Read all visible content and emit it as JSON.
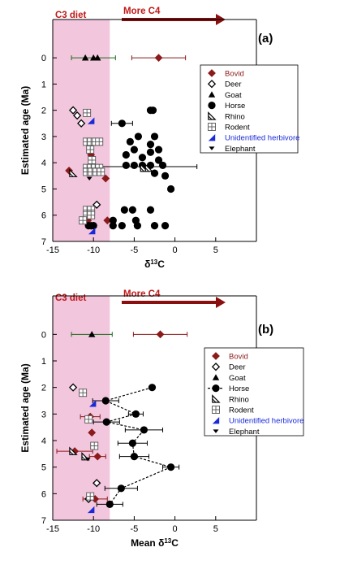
{
  "colors": {
    "c3_band": "#f2c6dd",
    "annotation": "#c01818",
    "arrow": "#8a1010",
    "bovid": "#8b1a1a",
    "unidentified": "#1a2ad8",
    "black": "#000000"
  },
  "chart_data": [
    {
      "type": "scatter",
      "panel_label": "(a)",
      "title": "",
      "xlabel": "δ13C",
      "ylabel": "Estimated age (Ma)",
      "xlim": [
        -15,
        10
      ],
      "ylim": [
        7,
        -0.5
      ],
      "xticks": [
        "-15",
        "-10",
        "-5",
        "0",
        "5"
      ],
      "yticks": [
        "0",
        "1",
        "2",
        "3",
        "4",
        "5",
        "6",
        "7"
      ],
      "c3_band_x": [
        -15,
        -8
      ],
      "annotations": {
        "c3": "C3 diet",
        "c4": "More C4"
      },
      "legend": {
        "position": "right",
        "entries": [
          {
            "label": "Bovid",
            "marker": "diamond-filled",
            "color": "#8b1a1a"
          },
          {
            "label": "Deer",
            "marker": "diamond-open",
            "color": "#000000"
          },
          {
            "label": "Goat",
            "marker": "triangle",
            "color": "#000000"
          },
          {
            "label": "Horse",
            "marker": "circle",
            "color": "#000000"
          },
          {
            "label": "Rhino",
            "marker": "half-triangle",
            "color": "#000000"
          },
          {
            "label": "Rodent",
            "marker": "crosshatch",
            "color": "#000000"
          },
          {
            "label": "Unidentified herbivore",
            "marker": "blue-triangle",
            "color": "#1a2ad8"
          },
          {
            "label": "Elephant",
            "marker": "elephant",
            "color": "#000000"
          }
        ]
      },
      "series": [
        {
          "name": "Bovid",
          "points": [
            [
              -2,
              0,
              3.3
            ],
            [
              -13,
              4.3,
              0
            ],
            [
              -10.3,
              3.7,
              0
            ],
            [
              -10.4,
              3.3,
              0
            ],
            [
              -8.5,
              4.6,
              0
            ],
            [
              -10.7,
              6.2,
              0
            ],
            [
              -8.3,
              6.2,
              0
            ]
          ]
        },
        {
          "name": "Deer",
          "points": [
            [
              -12.5,
              2.0,
              0
            ],
            [
              -12,
              2.2,
              0
            ],
            [
              -11.5,
              2.5,
              0
            ],
            [
              -9.6,
              5.6,
              0
            ],
            [
              -10.3,
              6.4,
              0
            ]
          ]
        },
        {
          "name": "Goat",
          "points": [
            [
              -11,
              0,
              0
            ],
            [
              -10,
              0,
              0
            ],
            [
              -9.5,
              0,
              0
            ]
          ]
        },
        {
          "name": "Horse",
          "points": [
            [
              -3,
              2.0,
              0
            ],
            [
              -2.7,
              2.0,
              0
            ],
            [
              -6.5,
              2.5,
              0
            ],
            [
              -4.5,
              3.0,
              0
            ],
            [
              -2.5,
              3.0,
              0
            ],
            [
              -5.5,
              3.2,
              0
            ],
            [
              -3,
              3.3,
              0
            ],
            [
              -5,
              3.5,
              0
            ],
            [
              -2,
              3.5,
              0
            ],
            [
              -3,
              3.6,
              0
            ],
            [
              -6,
              3.7,
              0
            ],
            [
              -4,
              3.8,
              0
            ],
            [
              -2,
              3.9,
              0
            ],
            [
              -6,
              4.1,
              0
            ],
            [
              -5,
              4.1,
              0
            ],
            [
              -4,
              4.1,
              0
            ],
            [
              -3,
              4.1,
              0
            ],
            [
              -1.5,
              4.1,
              0
            ],
            [
              -2.5,
              4.4,
              0
            ],
            [
              -1.2,
              4.5,
              0
            ],
            [
              -0.5,
              5.0,
              0
            ],
            [
              -6.2,
              5.8,
              0
            ],
            [
              -5.2,
              5.8,
              0
            ],
            [
              -3,
              5.8,
              0
            ],
            [
              -7.6,
              6.2,
              0
            ],
            [
              -4.8,
              6.2,
              0
            ],
            [
              -7.6,
              6.4,
              0
            ],
            [
              -6.5,
              6.4,
              0
            ],
            [
              -4.6,
              6.4,
              0
            ],
            [
              -10.6,
              6.4,
              0
            ],
            [
              -10,
              6.4,
              0
            ],
            [
              -2.5,
              6.4,
              0
            ],
            [
              -1.2,
              6.4,
              0
            ]
          ]
        },
        {
          "name": "Rhino",
          "points": [
            [
              -12.5,
              4.4,
              0
            ],
            [
              -3.8,
              4.2,
              0
            ],
            [
              -3.2,
              4.2,
              0
            ]
          ]
        },
        {
          "name": "Rodent",
          "points": [
            [
              -10.8,
              2.1,
              0
            ],
            [
              -10.8,
              3.2,
              0
            ],
            [
              -10.3,
              3.2,
              0
            ],
            [
              -9.7,
              3.2,
              0
            ],
            [
              -9.3,
              3.2,
              0
            ],
            [
              -10.4,
              3.5,
              0
            ],
            [
              -10.2,
              3.9,
              0
            ],
            [
              -10.8,
              4.2,
              0
            ],
            [
              -10.3,
              4.2,
              0
            ],
            [
              -9.8,
              4.2,
              0
            ],
            [
              -9.3,
              4.2,
              0
            ],
            [
              -10.8,
              4.35,
              0
            ],
            [
              -10.2,
              4.35,
              0
            ],
            [
              -9.6,
              4.35,
              0
            ],
            [
              -9.1,
              4.35,
              0
            ],
            [
              -10.8,
              5.8,
              0
            ],
            [
              -10.3,
              5.8,
              0
            ],
            [
              -10.8,
              6.0,
              0
            ],
            [
              -10.3,
              6.0,
              0
            ],
            [
              -11.3,
              6.2,
              0
            ]
          ]
        },
        {
          "name": "Unidentified herbivore",
          "points": [
            [
              -10.3,
              2.4,
              0
            ],
            [
              -10.2,
              6.6,
              0
            ]
          ]
        },
        {
          "name": "Elephant",
          "points": [
            [
              -10.5,
              4.6,
              0
            ]
          ]
        }
      ],
      "error_bars": [
        {
          "series": "Goat",
          "x": -10,
          "y": 0,
          "xerr": 2.7
        },
        {
          "series": "Horse",
          "x": -6.5,
          "y": 2.5,
          "xerr": 1.3
        },
        {
          "series": "Horse",
          "x": -3.8,
          "y": 4.15,
          "xerr": 6.5
        }
      ]
    },
    {
      "type": "scatter",
      "panel_label": "(b)",
      "title": "",
      "xlabel": "Mean δ13C",
      "ylabel": "Estimated age (Ma)",
      "xlim": [
        -15,
        10
      ],
      "ylim": [
        7,
        -0.5
      ],
      "xticks": [
        "-15",
        "-10",
        "-5",
        "0",
        "5"
      ],
      "yticks": [
        "0",
        "1",
        "2",
        "3",
        "4",
        "5",
        "6",
        "7"
      ],
      "c3_band_x": [
        -15,
        -8
      ],
      "annotations": {
        "c3": "C3 diet",
        "c4": "More C4"
      },
      "legend": {
        "position": "right",
        "entries": [
          {
            "label": "Bovid",
            "marker": "diamond-filled",
            "color": "#8b1a1a"
          },
          {
            "label": "Deer",
            "marker": "diamond-open",
            "color": "#000000"
          },
          {
            "label": "Goat",
            "marker": "triangle",
            "color": "#000000"
          },
          {
            "label": "Horse",
            "marker": "circle-line",
            "color": "#000000"
          },
          {
            "label": "Rhino",
            "marker": "half-triangle",
            "color": "#000000"
          },
          {
            "label": "Rodent",
            "marker": "crosshatch",
            "color": "#000000"
          },
          {
            "label": "Unidentified herbivore",
            "marker": "blue-triangle",
            "color": "#1a2ad8"
          },
          {
            "label": "Elephant",
            "marker": "elephant",
            "color": "#000000"
          }
        ]
      },
      "series": [
        {
          "name": "Bovid",
          "points": [
            [
              -1.8,
              0,
              3.3
            ],
            [
              -10.4,
              3.1,
              1.2
            ],
            [
              -10.2,
              3.7,
              0
            ],
            [
              -12.3,
              4.4,
              2.2
            ],
            [
              -9.5,
              4.6,
              1.0
            ],
            [
              -9.8,
              6.2,
              1.5
            ]
          ]
        },
        {
          "name": "Deer",
          "points": [
            [
              -12.5,
              2.0,
              0
            ],
            [
              -9.6,
              5.6,
              0
            ],
            [
              -10.6,
              6.2,
              0
            ]
          ]
        },
        {
          "name": "Goat",
          "points": [
            [
              -10.2,
              0,
              2.5
            ]
          ]
        },
        {
          "name": "Horse",
          "points": [
            [
              -2.8,
              2.0,
              0
            ],
            [
              -8.5,
              2.5,
              1.6
            ],
            [
              -4.8,
              3.0,
              0.9
            ],
            [
              -8.4,
              3.3,
              1.6
            ],
            [
              -3.8,
              3.6,
              2.3
            ],
            [
              -5.2,
              4.1,
              1.8
            ],
            [
              -5,
              4.6,
              1.8
            ],
            [
              -0.5,
              5.0,
              1.0
            ],
            [
              -6.6,
              5.8,
              2.0
            ],
            [
              -8,
              6.4,
              1.6
            ]
          ]
        },
        {
          "name": "Rhino",
          "points": [
            [
              -12.5,
              4.4,
              0
            ],
            [
              -11,
              4.6,
              0
            ]
          ]
        },
        {
          "name": "Rodent",
          "points": [
            [
              -11.3,
              2.2,
              0
            ],
            [
              -10.6,
              3.2,
              0
            ],
            [
              -9.9,
              4.2,
              0
            ],
            [
              -10.4,
              6.1,
              0
            ]
          ]
        },
        {
          "name": "Unidentified herbivore",
          "points": [
            [
              -10.1,
              2.6,
              0
            ],
            [
              -10.3,
              6.6,
              0
            ]
          ]
        },
        {
          "name": "Elephant",
          "points": [
            [
              -10.7,
              4.7,
              0
            ]
          ]
        }
      ],
      "horse_line": true
    }
  ]
}
